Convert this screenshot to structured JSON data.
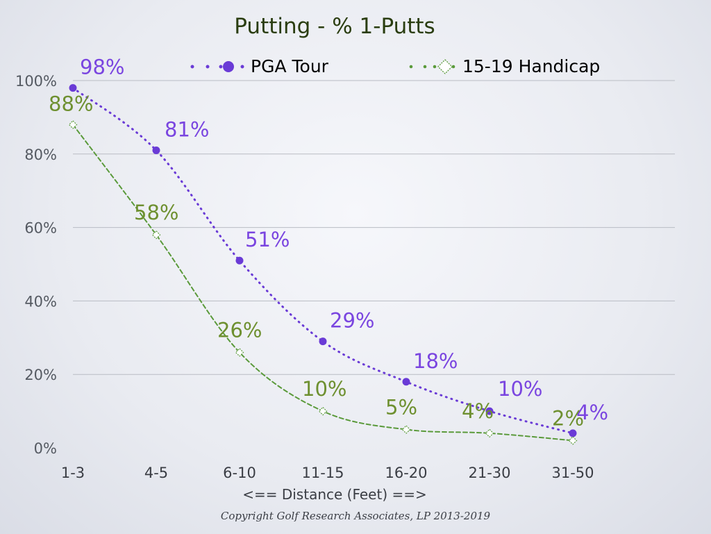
{
  "chart_data": {
    "type": "line",
    "title": "Putting - % 1-Putts",
    "xlabel": "<== Distance (Feet) ==>",
    "ylabel": "",
    "categories": [
      "1-3",
      "4-5",
      "6-10",
      "11-15",
      "16-20",
      "21-30",
      "31-50"
    ],
    "ylim": [
      0,
      100
    ],
    "yticks": [
      "0%",
      "20%",
      "40%",
      "60%",
      "80%",
      "100%"
    ],
    "ytick_values": [
      0,
      20,
      40,
      60,
      80,
      100
    ],
    "grid": true,
    "legend_position": "top",
    "series": [
      {
        "name": "PGA Tour",
        "values": [
          98,
          81,
          51,
          29,
          18,
          10,
          4
        ],
        "labels": [
          "98%",
          "81%",
          "51%",
          "29%",
          "18%",
          "10%",
          "4%"
        ],
        "color": "#6a3bd6",
        "label_color": "#7a45e0",
        "line_style": "dotted",
        "marker": "filled-circle"
      },
      {
        "name": "15-19 Handicap",
        "values": [
          88,
          58,
          26,
          10,
          5,
          4,
          2
        ],
        "labels": [
          "88%",
          "58%",
          "26%",
          "10%",
          "5%",
          "4%",
          "2%"
        ],
        "color": "#5a9a3a",
        "label_color": "#6e9030",
        "line_style": "dashed",
        "marker": "open-diamond"
      }
    ]
  },
  "footer": {
    "copyright": "Copyright Golf Research Associates, LP 2013-2019"
  },
  "colors": {
    "title": "#2a3d10",
    "grid": "#b9bcc4"
  }
}
